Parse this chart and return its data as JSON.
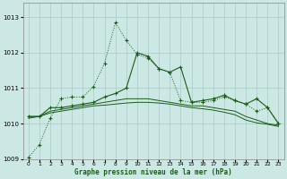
{
  "xlabel": "Graphe pression niveau de la mer (hPa)",
  "bg_color": "#cce8e4",
  "grid_color": "#b0d0cc",
  "line_color": "#1a5c1a",
  "ylim": [
    1009.0,
    1013.4
  ],
  "yticks": [
    1009,
    1010,
    1011,
    1012,
    1013
  ],
  "xticks": [
    0,
    1,
    2,
    3,
    4,
    5,
    6,
    7,
    8,
    9,
    10,
    11,
    12,
    13,
    14,
    15,
    16,
    17,
    18,
    19,
    20,
    21,
    22,
    23
  ],
  "series1_x": [
    0,
    1,
    2,
    3,
    4,
    5,
    6,
    7,
    8,
    9,
    10,
    11,
    12,
    13,
    14,
    15,
    16,
    17,
    18,
    19,
    20,
    21,
    22,
    23
  ],
  "series1_y": [
    1009.05,
    1009.4,
    1010.15,
    1010.7,
    1010.75,
    1010.75,
    1011.05,
    1011.7,
    1012.85,
    1012.35,
    1011.95,
    1011.85,
    1011.55,
    1011.45,
    1010.65,
    1010.6,
    1010.6,
    1010.65,
    1010.75,
    1010.65,
    1010.55,
    1010.35,
    1010.45,
    1010.0
  ],
  "series2_x": [
    0,
    1,
    2,
    3,
    4,
    5,
    6,
    7,
    8,
    9,
    10,
    11,
    12,
    13,
    14,
    15,
    16,
    17,
    18,
    19,
    20,
    21,
    22,
    23
  ],
  "series2_y": [
    1010.2,
    1010.2,
    1010.45,
    1010.45,
    1010.5,
    1010.55,
    1010.6,
    1010.75,
    1010.85,
    1011.0,
    1012.0,
    1011.9,
    1011.55,
    1011.45,
    1011.6,
    1010.6,
    1010.65,
    1010.7,
    1010.8,
    1010.65,
    1010.55,
    1010.7,
    1010.45,
    1010.0
  ],
  "series3_x": [
    0,
    1,
    2,
    3,
    4,
    5,
    6,
    7,
    8,
    9,
    10,
    11,
    12,
    13,
    14,
    15,
    16,
    17,
    18,
    19,
    20,
    21,
    22,
    23
  ],
  "series3_y": [
    1010.2,
    1010.2,
    1010.35,
    1010.4,
    1010.45,
    1010.5,
    1010.55,
    1010.6,
    1010.65,
    1010.7,
    1010.7,
    1010.7,
    1010.65,
    1010.6,
    1010.55,
    1010.5,
    1010.5,
    1010.45,
    1010.4,
    1010.35,
    1010.2,
    1010.1,
    1010.0,
    1009.95
  ],
  "series4_x": [
    0,
    1,
    2,
    3,
    4,
    5,
    6,
    7,
    8,
    9,
    10,
    11,
    12,
    13,
    14,
    15,
    16,
    17,
    18,
    19,
    20,
    21,
    22,
    23
  ],
  "series4_y": [
    1010.15,
    1010.2,
    1010.3,
    1010.35,
    1010.4,
    1010.45,
    1010.5,
    1010.52,
    1010.55,
    1010.58,
    1010.6,
    1010.6,
    1010.58,
    1010.55,
    1010.5,
    1010.45,
    1010.42,
    1010.38,
    1010.32,
    1010.25,
    1010.1,
    1010.02,
    1009.98,
    1009.92
  ]
}
